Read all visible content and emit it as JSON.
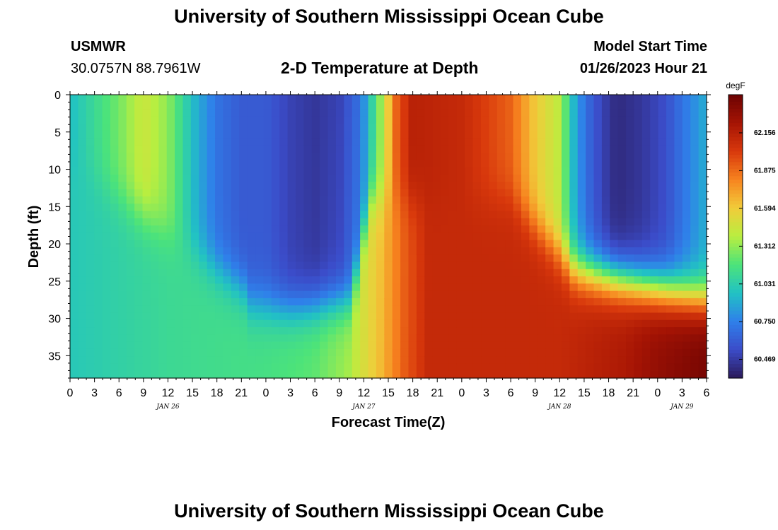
{
  "header": {
    "title": "University of Southern Mississippi Ocean Cube",
    "station_id": "USMWR",
    "station_coords": "30.0757N  88.7961W",
    "plot_title": "2-D Temperature at Depth",
    "start_label": "Model Start Time",
    "start_time": "01/26/2023 Hour 21"
  },
  "footer": {
    "title": "University of Southern Mississippi Ocean Cube"
  },
  "chart_data": {
    "type": "heatmap",
    "title": "2-D Temperature at Depth",
    "xlabel": "Forecast Time(Z)",
    "ylabel": "Depth (ft)",
    "x_hours_range": [
      0,
      78
    ],
    "x_tick_hours": [
      0,
      3,
      6,
      9,
      12,
      15,
      18,
      21,
      24,
      27,
      30,
      33,
      36,
      39,
      42,
      45,
      48,
      51,
      54,
      57,
      60,
      63,
      66,
      69,
      72,
      75,
      78
    ],
    "x_tick_labels": [
      "0",
      "3",
      "6",
      "9",
      "12",
      "15",
      "18",
      "21",
      "0",
      "3",
      "6",
      "9",
      "12",
      "15",
      "18",
      "21",
      "0",
      "3",
      "6",
      "9",
      "12",
      "15",
      "18",
      "21",
      "0",
      "3",
      "6"
    ],
    "date_labels": [
      {
        "hour": 12,
        "text": "JAN 26"
      },
      {
        "hour": 36,
        "text": "JAN 27"
      },
      {
        "hour": 60,
        "text": "JAN 28"
      },
      {
        "hour": 75,
        "text": "JAN 29"
      }
    ],
    "ylim": [
      0,
      38
    ],
    "y_ticks": [
      0,
      5,
      10,
      15,
      20,
      25,
      30,
      35
    ],
    "y_tick_labels": [
      "0",
      "5",
      "10",
      "15",
      "20",
      "25",
      "30",
      "35"
    ],
    "colorbar": {
      "unit": "degF",
      "range": [
        60.33,
        62.44
      ],
      "ticks": [
        60.469,
        60.75,
        61.031,
        61.312,
        61.594,
        61.875,
        62.156
      ],
      "tick_labels": [
        "60.469",
        "60.750",
        "61.031",
        "61.312",
        "61.594",
        "61.875",
        "62.156"
      ],
      "colormap": [
        "#2b1a5a",
        "#3b4cc9",
        "#2f80ea",
        "#21c2c4",
        "#4ce37a",
        "#b9ee40",
        "#f1cc3a",
        "#f7831f",
        "#d8380c",
        "#a51404",
        "#6c0303"
      ]
    },
    "field_description": {
      "grid_columns": 79,
      "grid_rows": 39,
      "approx_surface_temps_degF": [
        {
          "hour": 0,
          "temp": 60.95
        },
        {
          "hour": 10,
          "temp": 61.45
        },
        {
          "hour": 24,
          "temp": 60.6
        },
        {
          "hour": 30,
          "temp": 60.45
        },
        {
          "hour": 36,
          "temp": 60.8
        },
        {
          "hour": 42,
          "temp": 62.15
        },
        {
          "hour": 54,
          "temp": 61.9
        },
        {
          "hour": 60,
          "temp": 61.4
        },
        {
          "hour": 67,
          "temp": 60.4
        },
        {
          "hour": 78,
          "temp": 60.9
        }
      ],
      "approx_bottom_temps_degF": [
        {
          "hour": 0,
          "temp": 61.0
        },
        {
          "hour": 24,
          "temp": 61.15
        },
        {
          "hour": 38,
          "temp": 61.6
        },
        {
          "hour": 44,
          "temp": 62.1
        },
        {
          "hour": 78,
          "temp": 62.4
        }
      ]
    }
  }
}
